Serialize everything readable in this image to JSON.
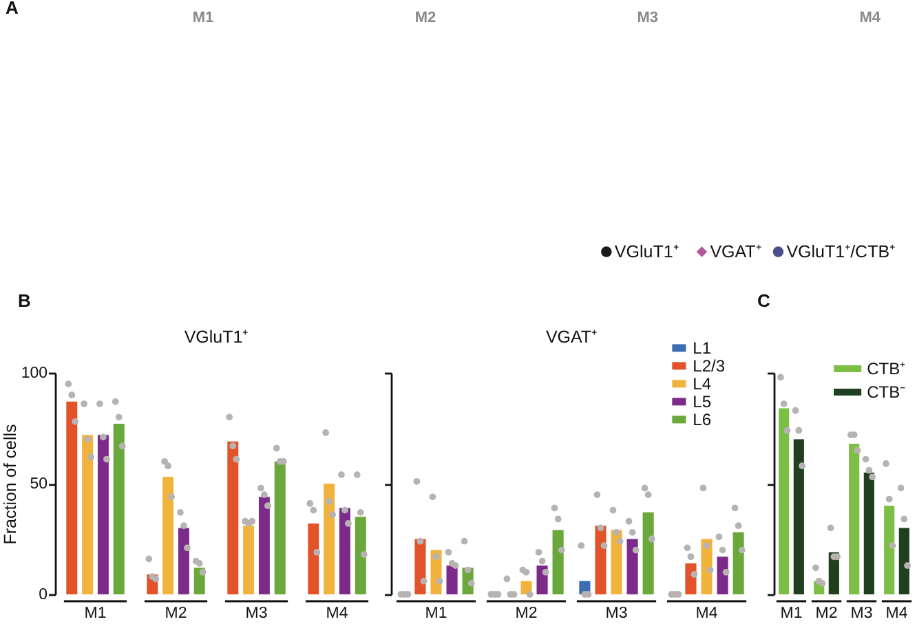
{
  "chart_data": [
    {
      "type": "other",
      "annotations": [
        "A",
        "M1",
        "M2",
        "M3",
        "M4"
      ],
      "legend": "bottom right",
      "series": [
        {
          "name": "VGluT1⁺",
          "color": "#1a1a1a",
          "marker": "circle"
        },
        {
          "name": "VGAT⁺",
          "color": "#b0589a",
          "marker": "diamond"
        },
        {
          "name": "VGluT1⁺/CTB⁺",
          "color": "#4d4d8a",
          "marker": "circle"
        }
      ]
    },
    {
      "type": "bar",
      "title": "VGluT1⁺",
      "ylabel": "Fraction of cells",
      "annotations": [
        "B"
      ],
      "categories": [
        "M1",
        "M2",
        "M3",
        "M4"
      ],
      "ylim": [
        0,
        100
      ],
      "yticks": [
        0,
        50,
        100
      ],
      "marker": "circle",
      "series": [
        {
          "color": "#e2532a",
          "values": [
            87,
            9,
            69,
            32
          ]
        },
        {
          "color": "#f2b33d",
          "values": [
            72,
            53,
            31,
            50
          ]
        },
        {
          "color": "#7d2b8b",
          "values": [
            72,
            30,
            44,
            39
          ]
        },
        {
          "color": "#6aa83c",
          "values": [
            77,
            12,
            60,
            35
          ]
        },
        {
          "type": "scatter",
          "color": "#b8b3b3",
          "x": [
            "M1",
            "M1",
            "M1",
            "M2",
            "M2",
            "M2",
            "M3",
            "M3",
            "M3",
            "M4",
            "M4",
            "M4"
          ],
          "values": [
            95,
            90,
            78,
            16,
            8,
            7,
            80,
            67,
            61,
            41,
            38,
            19
          ]
        },
        {
          "type": "scatter",
          "color": "#b8b3b3",
          "x": [
            "M1",
            "M1",
            "M1",
            "M2",
            "M2",
            "M2",
            "M3",
            "M3",
            "M3",
            "M4",
            "M4",
            "M4"
          ],
          "values": [
            86,
            70,
            62,
            60,
            58,
            44,
            33,
            32,
            33,
            73,
            42,
            36
          ]
        },
        {
          "type": "scatter",
          "color": "#b8b3b3",
          "x": [
            "M1",
            "M1",
            "M1",
            "M2",
            "M2",
            "M2",
            "M3",
            "M3",
            "M3",
            "M4",
            "M4",
            "M4"
          ],
          "values": [
            86,
            71,
            61,
            37,
            31,
            21,
            48,
            45,
            40,
            54,
            38,
            32
          ]
        },
        {
          "type": "scatter",
          "color": "#b8b3b3",
          "x": [
            "M1",
            "M1",
            "M1",
            "M2",
            "M2",
            "M2",
            "M3",
            "M3",
            "M3",
            "M4",
            "M4",
            "M4"
          ],
          "values": [
            87,
            80,
            67,
            15,
            14,
            10,
            66,
            60,
            60,
            54,
            37,
            18
          ]
        }
      ]
    },
    {
      "type": "bar",
      "title": "VGAT⁺",
      "categories": [
        "M1",
        "M2",
        "M3",
        "M4"
      ],
      "ylim": [
        0,
        100
      ],
      "yticks": [
        0,
        50,
        100
      ],
      "tick_labels": "x",
      "marker": "circle",
      "legend": "top right",
      "series": [
        {
          "name": "L1",
          "color": "#3a6db4",
          "values": [
            null,
            null,
            6,
            null
          ]
        },
        {
          "name": "L2/3",
          "color": "#e2532a",
          "values": [
            25,
            null,
            31,
            14
          ]
        },
        {
          "name": "L4",
          "color": "#f2b33d",
          "values": [
            20,
            6,
            29,
            25
          ]
        },
        {
          "name": "L5",
          "color": "#7d2b8b",
          "values": [
            13,
            13,
            25,
            17
          ]
        },
        {
          "name": "L6",
          "color": "#6aa83c",
          "values": [
            12,
            29,
            37,
            28
          ]
        },
        {
          "type": "scatter",
          "color": "#b8b3b3",
          "x": [
            "M1",
            "M1",
            "M1",
            "M2",
            "M2",
            "M2",
            "M3",
            "M3",
            "M3",
            "M4",
            "M4",
            "M4"
          ],
          "values": [
            0,
            0,
            0,
            0,
            0,
            0,
            22,
            0,
            0,
            0,
            0,
            0
          ]
        },
        {
          "type": "scatter",
          "color": "#b8b3b3",
          "x": [
            "M1",
            "M1",
            "M1",
            "M2",
            "M2",
            "M2",
            "M3",
            "M3",
            "M3",
            "M4",
            "M4",
            "M4"
          ],
          "values": [
            51,
            24,
            6,
            7,
            0,
            0,
            45,
            30,
            22,
            21,
            17,
            9
          ]
        },
        {
          "type": "scatter",
          "color": "#b8b3b3",
          "x": [
            "M1",
            "M1",
            "M1",
            "M2",
            "M2",
            "M2",
            "M3",
            "M3",
            "M3",
            "M4",
            "M4",
            "M4"
          ],
          "values": [
            44,
            17,
            6,
            11,
            10,
            0,
            38,
            28,
            24,
            48,
            22,
            11
          ]
        },
        {
          "type": "scatter",
          "color": "#b8b3b3",
          "x": [
            "M1",
            "M1",
            "M1",
            "M2",
            "M2",
            "M2",
            "M3",
            "M3",
            "M3",
            "M4",
            "M4",
            "M4"
          ],
          "values": [
            19,
            14,
            13,
            19,
            15,
            10,
            33,
            28,
            20,
            26,
            20,
            10
          ]
        },
        {
          "type": "scatter",
          "color": "#b8b3b3",
          "x": [
            "M1",
            "M1",
            "M1",
            "M2",
            "M2",
            "M2",
            "M3",
            "M3",
            "M3",
            "M4",
            "M4",
            "M4"
          ],
          "values": [
            24,
            11,
            5,
            39,
            34,
            20,
            48,
            45,
            25,
            39,
            31,
            20
          ]
        }
      ]
    },
    {
      "type": "bar",
      "annotations": [
        "C"
      ],
      "categories": [
        "M1",
        "M2",
        "M3",
        "M4"
      ],
      "ylim": [
        0,
        100
      ],
      "yticks": [
        0,
        50,
        100
      ],
      "tick_labels": "x",
      "marker": "circle",
      "legend": "top right",
      "series": [
        {
          "name": "CTB⁺",
          "color": "#7dbf45",
          "values": [
            84,
            6,
            68,
            40
          ]
        },
        {
          "name": "CTB⁻",
          "color": "#1f3f1f",
          "values": [
            70,
            19,
            55,
            30
          ]
        },
        {
          "type": "scatter",
          "color": "#b8b3b3",
          "x": [
            "M1",
            "M1",
            "M1",
            "M2",
            "M2",
            "M2",
            "M3",
            "M3",
            "M3",
            "M4",
            "M4",
            "M4"
          ],
          "values": [
            98,
            86,
            74,
            12,
            6,
            5,
            72,
            72,
            65,
            59,
            43,
            22
          ]
        },
        {
          "type": "scatter",
          "color": "#b8b3b3",
          "x": [
            "M1",
            "M1",
            "M1",
            "M2",
            "M2",
            "M2",
            "M3",
            "M3",
            "M3",
            "M4",
            "M4",
            "M4"
          ],
          "values": [
            83,
            74,
            58,
            30,
            17,
            17,
            61,
            56,
            53,
            48,
            34,
            13
          ]
        }
      ]
    }
  ]
}
